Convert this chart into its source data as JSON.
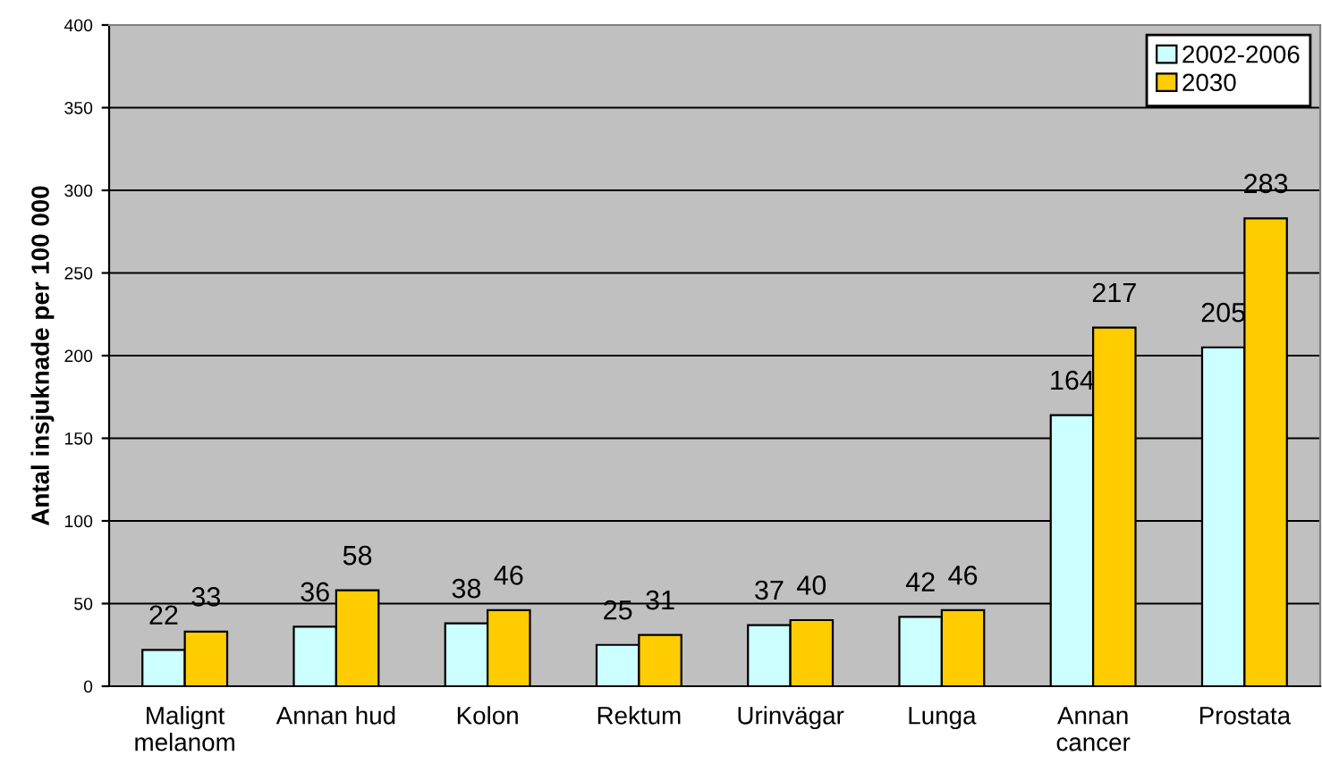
{
  "chart_data": {
    "type": "bar",
    "ylabel": "Antal insjuknade per 100 000",
    "categories": [
      "Malignt\nmelanom",
      "Annan hud",
      "Kolon",
      "Rektum",
      "Urinvägar",
      "Lunga",
      "Annan\ncancer",
      "Prostata"
    ],
    "series": [
      {
        "name": "2002-2006",
        "color": "#ccffff",
        "values": [
          22,
          36,
          38,
          25,
          37,
          42,
          164,
          205
        ]
      },
      {
        "name": "2030",
        "color": "#ffcc00",
        "values": [
          33,
          58,
          46,
          31,
          40,
          46,
          217,
          283
        ]
      }
    ],
    "ylim": [
      0,
      400
    ],
    "yticks": [
      0,
      50,
      100,
      150,
      200,
      250,
      300,
      350,
      400
    ],
    "grid": "y",
    "legend": "top right",
    "data_labels": true
  }
}
